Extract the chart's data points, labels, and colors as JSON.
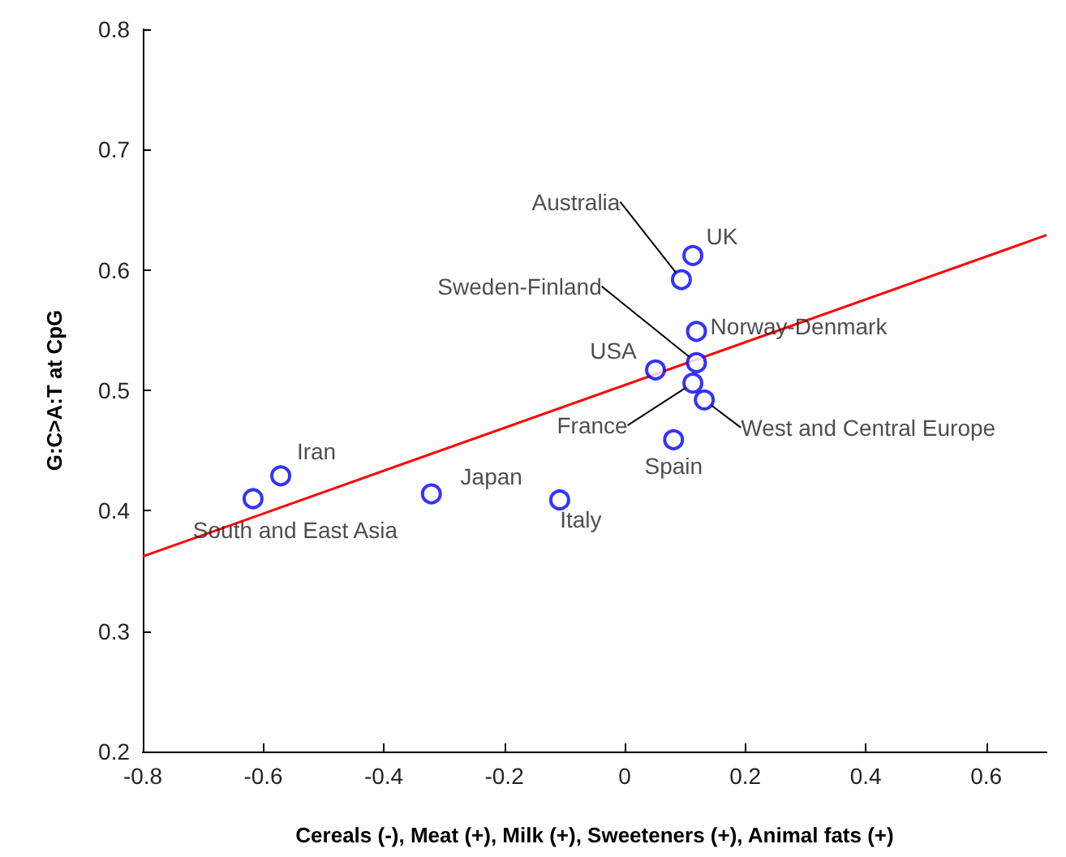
{
  "chart_data": {
    "type": "scatter",
    "xlabel": "Cereals (-), Meat (+), Milk (+), Sweeteners (+), Animal fats (+)",
    "ylabel": "G:C>A:T at CpG",
    "xlim": [
      -0.8,
      0.7
    ],
    "xticks": [
      -0.8,
      -0.6,
      -0.4,
      -0.2,
      0,
      0.2,
      0.4,
      0.6
    ],
    "ylim": [
      0.2,
      0.8
    ],
    "yticks": [
      0.2,
      0.3,
      0.4,
      0.5,
      0.6,
      0.7,
      0.8
    ],
    "grid": false,
    "marker": "circle",
    "series": [
      {
        "color": "#0000ff",
        "x": [
          0.113,
          0.094,
          0.119,
          0.051,
          0.119,
          0.113,
          0.132,
          0.081,
          -0.571,
          -0.617,
          -0.321,
          -0.108
        ],
        "values": [
          0.612,
          0.592,
          0.549,
          0.517,
          0.523,
          0.506,
          0.492,
          0.459,
          0.429,
          0.41,
          0.414,
          0.409
        ]
      },
      {
        "type": "line",
        "marker": "none",
        "color": "#ff0000",
        "x": [
          -0.8,
          0.7
        ],
        "values": [
          0.362,
          0.629
        ]
      }
    ],
    "annotations": [
      {
        "text": "UK",
        "x": 0.113,
        "y": 0.612
      },
      {
        "text": "Australia",
        "x": 0.094,
        "y": 0.592
      },
      {
        "text": "Norway-Denmark",
        "x": 0.119,
        "y": 0.549
      },
      {
        "text": "USA",
        "x": 0.051,
        "y": 0.517
      },
      {
        "text": "Sweden-Finland",
        "x": 0.119,
        "y": 0.523
      },
      {
        "text": "France",
        "x": 0.113,
        "y": 0.506
      },
      {
        "text": "West and Central Europe",
        "x": 0.132,
        "y": 0.492
      },
      {
        "text": "Spain",
        "x": 0.081,
        "y": 0.459
      },
      {
        "text": "Iran",
        "x": -0.571,
        "y": 0.429
      },
      {
        "text": "South and East Asia",
        "x": -0.617,
        "y": 0.41
      },
      {
        "text": "Japan",
        "x": -0.321,
        "y": 0.414
      },
      {
        "text": "Italy",
        "x": -0.108,
        "y": 0.409
      }
    ]
  }
}
